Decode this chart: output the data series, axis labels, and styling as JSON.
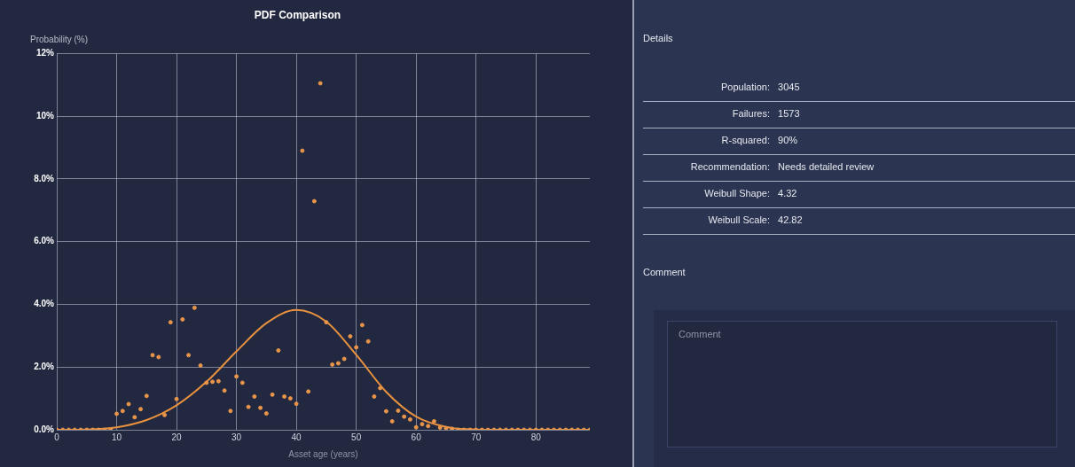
{
  "chart_data": [
    {
      "type": "scatter",
      "title": "PDF Comparison",
      "xlabel": "Asset age (years)",
      "ylabel": "Probability (%)",
      "xlim": [
        0,
        89
      ],
      "xticks": [
        0,
        10,
        20,
        30,
        40,
        50,
        60,
        70,
        80
      ],
      "ylim": [
        0,
        12
      ],
      "yticks": [
        {
          "value": 0,
          "label": "0.0%"
        },
        {
          "value": 2,
          "label": "2.0%"
        },
        {
          "value": 4,
          "label": "4.0%"
        },
        {
          "value": 6,
          "label": "6.0%"
        },
        {
          "value": 8,
          "label": "8.0%"
        },
        {
          "value": 10,
          "label": "10%"
        },
        {
          "value": 12,
          "label": "12%"
        }
      ],
      "grid": true,
      "legend": false,
      "series": [
        {
          "type": "scatter",
          "marker": "circle",
          "color": "#e8954a",
          "x": [
            0,
            1,
            2,
            3,
            4,
            5,
            6,
            7,
            8,
            9,
            10,
            11,
            12,
            13,
            14,
            15,
            16,
            17,
            18,
            19,
            20,
            21,
            22,
            23,
            24,
            25,
            26,
            27,
            28,
            29,
            30,
            31,
            32,
            33,
            34,
            35,
            36,
            37,
            38,
            39,
            40,
            41,
            42,
            43,
            44,
            45,
            46,
            47,
            48,
            49,
            50,
            51,
            52,
            53,
            54,
            55,
            56,
            57,
            58,
            59,
            60,
            61,
            62,
            63,
            64,
            65,
            66,
            67,
            68,
            69,
            70,
            71,
            72,
            73,
            74,
            75,
            76,
            77,
            78,
            79,
            80,
            81,
            82,
            83,
            84,
            85,
            86,
            87,
            88,
            89
          ],
          "values": [
            0,
            0,
            0,
            0,
            0,
            0,
            0,
            0,
            0,
            0,
            0.51,
            0.6,
            0.82,
            0.4,
            0.66,
            1.08,
            2.38,
            2.32,
            0.47,
            3.43,
            0.98,
            3.52,
            2.38,
            3.89,
            2.05,
            1.5,
            1.53,
            1.55,
            1.25,
            0.6,
            1.7,
            1.5,
            0.73,
            1.06,
            0.7,
            0.52,
            1.12,
            2.53,
            1.06,
            1.0,
            0.83,
            8.9,
            1.22,
            7.29,
            11.05,
            3.43,
            2.08,
            2.12,
            2.26,
            2.98,
            2.63,
            3.34,
            2.82,
            1.06,
            1.33,
            0.59,
            0.27,
            0.61,
            0.42,
            0.33,
            0.08,
            0.18,
            0.12,
            0.27,
            0.07,
            0.05,
            0.03,
            0,
            0,
            0,
            0,
            0,
            0,
            0,
            0,
            0,
            0,
            0,
            0,
            0,
            0,
            0,
            0,
            0,
            0,
            0,
            0,
            0,
            0,
            0
          ]
        },
        {
          "type": "line",
          "marker": "none",
          "line_style": "solid",
          "color": "#e8913f",
          "x": [
            0,
            5,
            10,
            15,
            20,
            25,
            30,
            35,
            40,
            45,
            50,
            55,
            60,
            65,
            70,
            75,
            80,
            85,
            89
          ],
          "values": [
            0,
            0.01,
            0.08,
            0.31,
            0.78,
            1.53,
            2.5,
            3.4,
            3.82,
            3.45,
            2.39,
            1.21,
            0.42,
            0.09,
            0.01,
            0,
            0,
            0,
            0
          ]
        }
      ]
    },
    {
      "type": "other",
      "title": "Details",
      "annotations": [
        "Population: 3045",
        "Failures: 1573",
        "R-squared: 90%",
        "Recommendation: Needs detailed review",
        "Weibull Shape: 4.32",
        "Weibull Scale: 42.82"
      ]
    },
    {
      "type": "other",
      "title": "Comment",
      "annotations": [
        "Comment"
      ]
    }
  ]
}
